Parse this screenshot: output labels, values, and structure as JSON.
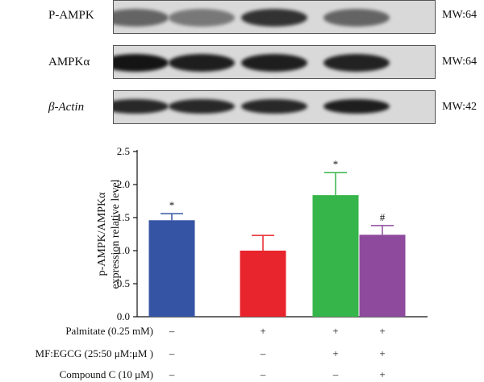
{
  "blots": [
    {
      "label": "P-AMPK",
      "mw": "MW:64",
      "intensity": [
        0.55,
        0.45,
        0.8,
        0.55
      ]
    },
    {
      "label": "AMPKα",
      "mw": "MW:64",
      "intensity": [
        0.95,
        0.9,
        0.9,
        0.88
      ]
    },
    {
      "label": "β-Actin",
      "mw": "MW:42",
      "intensity": [
        0.85,
        0.85,
        0.85,
        0.9
      ]
    }
  ],
  "chart_data": {
    "type": "bar",
    "ylabel": [
      "p-AMPK/AMPKα",
      "expression relative level"
    ],
    "ylim": [
      0,
      2.5
    ],
    "yticks": [
      "0.0",
      "0.5",
      "1.0",
      "1.5",
      "2.0",
      "2.5"
    ],
    "values": [
      1.46,
      1.0,
      1.84,
      1.24
    ],
    "errors": [
      0.1,
      0.23,
      0.34,
      0.14
    ],
    "colors": [
      "#3654a4",
      "#e8242c",
      "#36b54a",
      "#8e4a9d"
    ],
    "annotations": [
      "*",
      "",
      "*",
      "#"
    ],
    "grid": false,
    "legend": "none"
  },
  "treatments": [
    {
      "label": "Palmitate (0.25 mM)",
      "signs": [
        "–",
        "+",
        "+",
        "+"
      ]
    },
    {
      "label": "MF:EGCG (25:50 μM:μM )",
      "signs": [
        "–",
        "–",
        "+",
        "+"
      ]
    },
    {
      "label": "Compound C (10 μM)",
      "signs": [
        "–",
        "–",
        "–",
        "+"
      ]
    }
  ]
}
